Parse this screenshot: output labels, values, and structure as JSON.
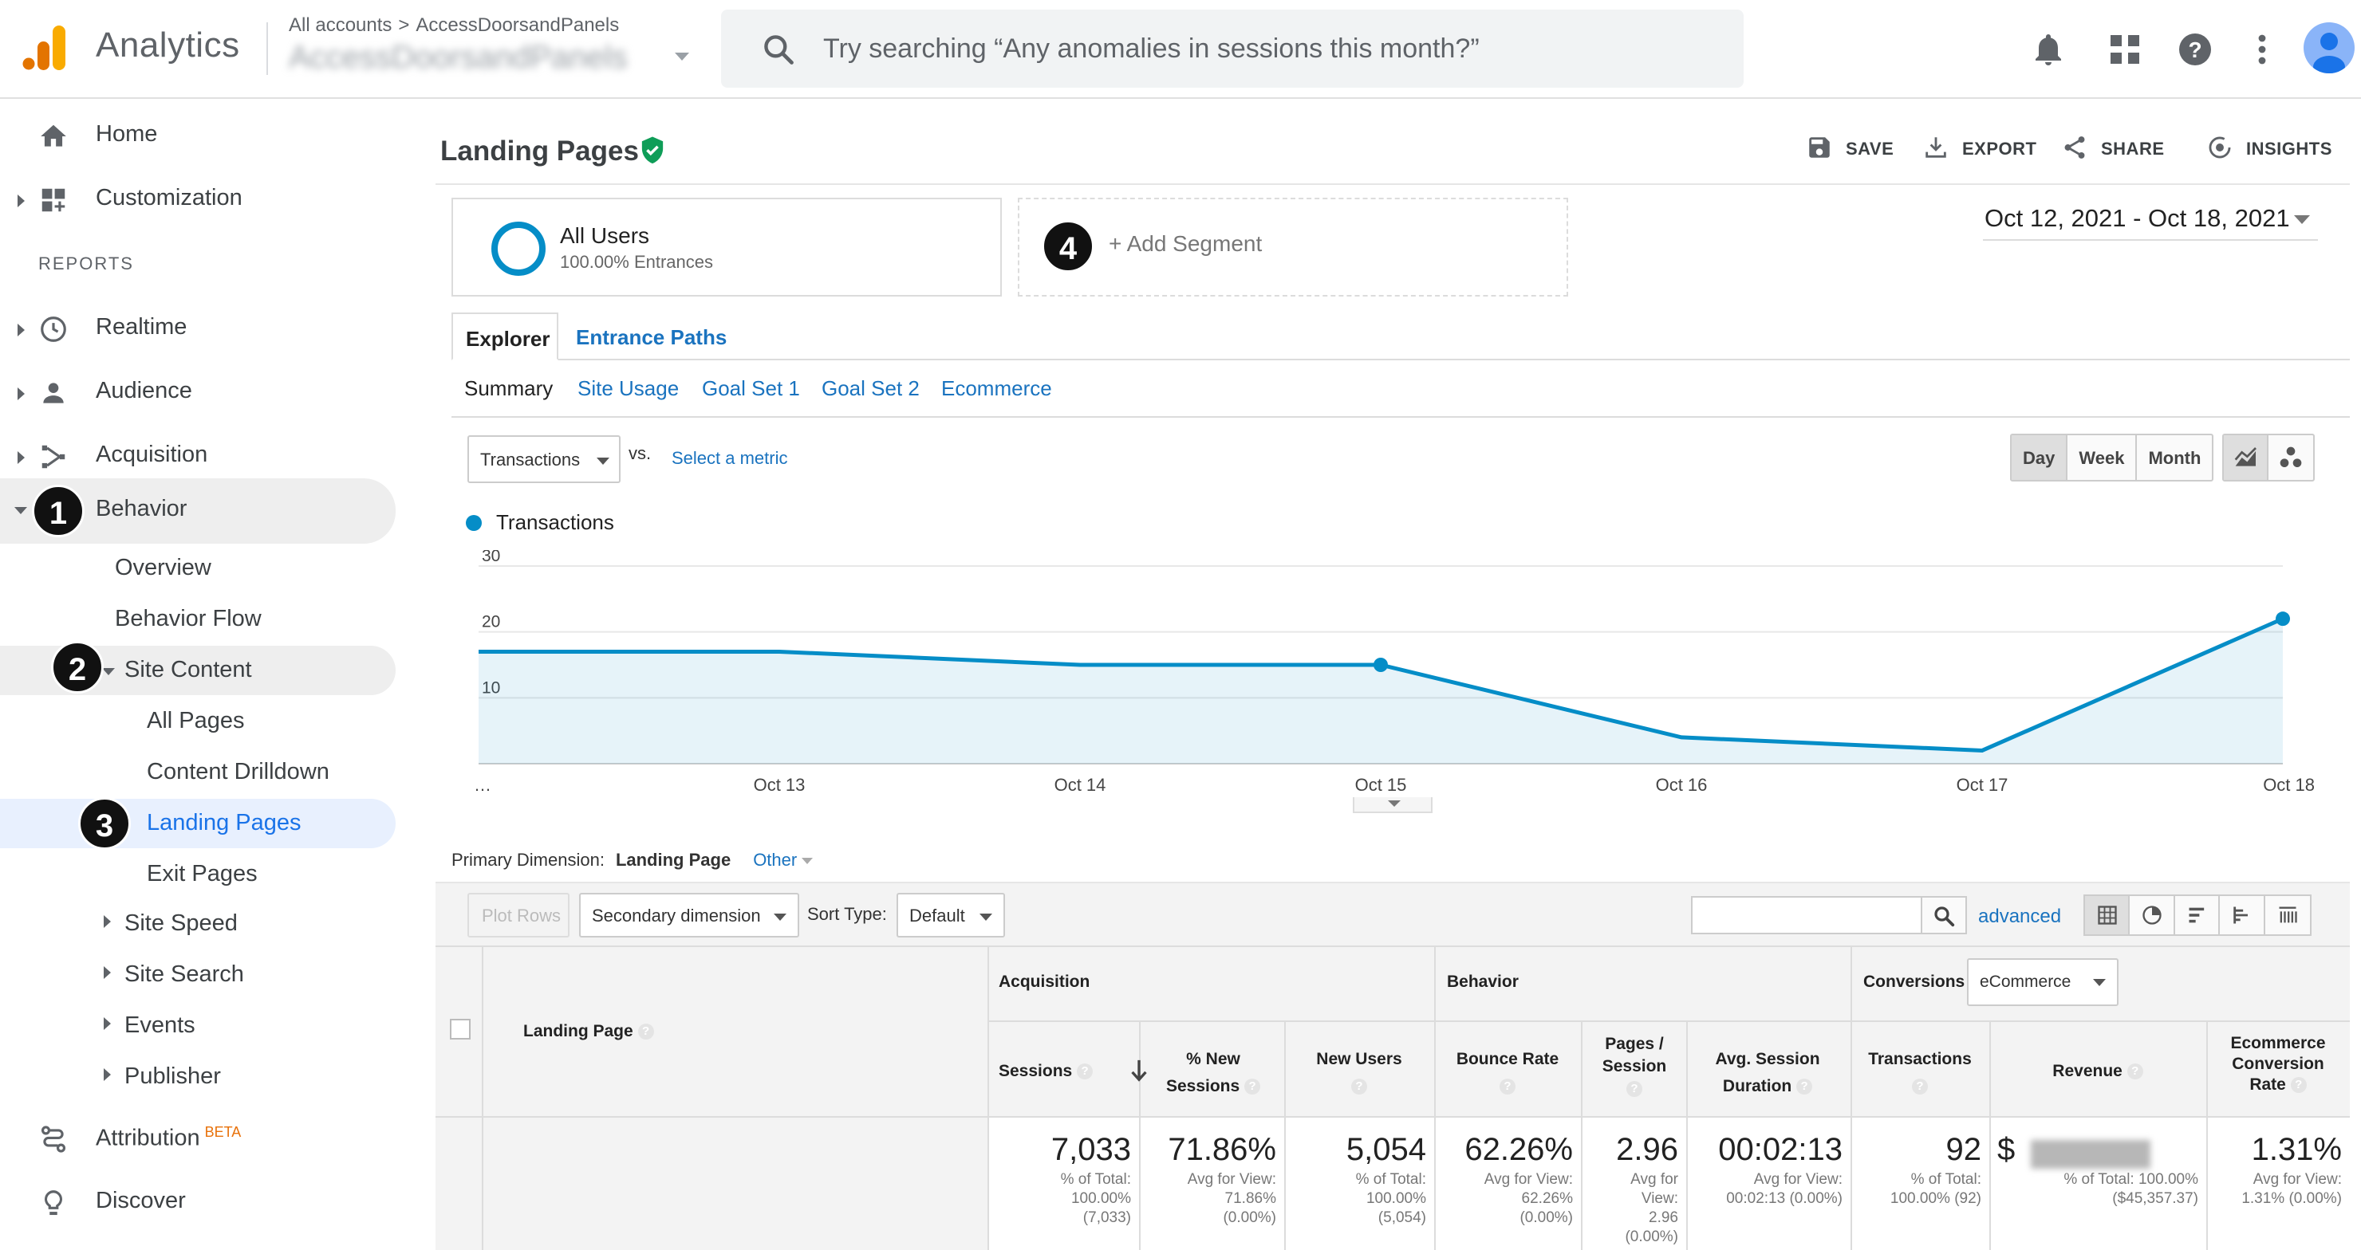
{
  "app": {
    "title": "Analytics",
    "breadcrumb": [
      "All accounts",
      "AccessDoorsandPanels"
    ],
    "account_name": "AccessDoorsandPanels",
    "search_placeholder": "Try searching “Any anomalies in sessions this month?”"
  },
  "sidebar": {
    "home": "Home",
    "customization": "Customization",
    "reports_heading": "REPORTS",
    "realtime": "Realtime",
    "audience": "Audience",
    "acquisition": "Acquisition",
    "behavior": "Behavior",
    "behavior_sub": {
      "overview": "Overview",
      "behavior_flow": "Behavior Flow",
      "site_content": "Site Content",
      "all_pages": "All Pages",
      "content_drilldown": "Content Drilldown",
      "landing_pages": "Landing Pages",
      "exit_pages": "Exit Pages",
      "site_speed": "Site Speed",
      "site_search": "Site Search",
      "events": "Events",
      "publisher": "Publisher"
    },
    "attribution": "Attribution",
    "beta": "BETA",
    "discover": "Discover"
  },
  "badges": [
    "1",
    "2",
    "3",
    "4"
  ],
  "report": {
    "title": "Landing Pages",
    "actions": {
      "save": "SAVE",
      "export": "EXPORT",
      "share": "SHARE",
      "insights": "INSIGHTS"
    },
    "segment": {
      "name": "All Users",
      "sub": "100.00% Entrances",
      "add": "+ Add Segment"
    },
    "date_range": "Oct 12, 2021 - Oct 18, 2021",
    "tabs": [
      "Explorer",
      "Entrance Paths"
    ],
    "subtabs": [
      "Summary",
      "Site Usage",
      "Goal Set 1",
      "Goal Set 2",
      "Ecommerce"
    ],
    "metric": "Transactions",
    "vs": "VS.",
    "select_metric": "Select a metric",
    "periods": [
      "Day",
      "Week",
      "Month"
    ],
    "active_period": "Day"
  },
  "chart_data": {
    "type": "area",
    "x": [
      "…",
      "Oct 13",
      "Oct 14",
      "Oct 15",
      "Oct 16",
      "Oct 17",
      "Oct 18"
    ],
    "series": [
      {
        "name": "Transactions",
        "values": [
          17,
          17,
          15,
          15,
          4,
          2,
          22
        ]
      }
    ],
    "y_ticks": [
      "30",
      "20",
      "10"
    ],
    "ylim": [
      0,
      30
    ],
    "color": "#058dc7",
    "grid": true
  },
  "table": {
    "primary_dimension_label": "Primary Dimension:",
    "primary_dimension": "Landing Page",
    "other": "Other",
    "plot_rows": "Plot Rows",
    "secondary_dimension": "Secondary dimension",
    "sort_type_label": "Sort Type:",
    "sort_type": "Default",
    "advanced": "advanced",
    "conversion_select": "eCommerce",
    "groups": {
      "acquisition": "Acquisition",
      "behavior": "Behavior",
      "conversions": "Conversions"
    },
    "headers": {
      "landing_page": "Landing Page",
      "sessions": "Sessions",
      "pct_new_1": "% New",
      "pct_new_2": "Sessions",
      "new_users": "New Users",
      "bounce_rate": "Bounce Rate",
      "pages_1": "Pages /",
      "pages_2": "Session",
      "avg_1": "Avg. Session",
      "avg_2": "Duration",
      "transactions": "Transactions",
      "revenue": "Revenue",
      "ecr_1": "Ecommerce",
      "ecr_2": "Conversion",
      "ecr_3": "Rate"
    },
    "totals": {
      "sessions": {
        "value": "7,033",
        "sub": [
          "% of Total:",
          "100.00%",
          "(7,033)"
        ]
      },
      "pct_new": {
        "value": "71.86%",
        "sub": [
          "Avg for View:",
          "71.86%",
          "(0.00%)"
        ]
      },
      "new_users": {
        "value": "5,054",
        "sub": [
          "% of Total:",
          "100.00%",
          "(5,054)"
        ]
      },
      "bounce_rate": {
        "value": "62.26%",
        "sub": [
          "Avg for View:",
          "62.26%",
          "(0.00%)"
        ]
      },
      "pages": {
        "value": "2.96",
        "sub": [
          "Avg for",
          "View:",
          "2.96",
          "(0.00%)"
        ]
      },
      "avg_duration": {
        "value": "00:02:13",
        "sub": [
          "Avg for View:",
          "00:02:13 (0.00%)"
        ]
      },
      "transactions": {
        "value": "92",
        "sub": [
          "% of Total:",
          "100.00% (92)"
        ]
      },
      "revenue": {
        "value": "$",
        "sub": [
          "% of Total: 100.00%",
          "($45,357.37)"
        ]
      },
      "ecr": {
        "value": "1.31%",
        "sub": [
          "Avg for View:",
          "1.31% (0.00%)"
        ]
      }
    }
  }
}
